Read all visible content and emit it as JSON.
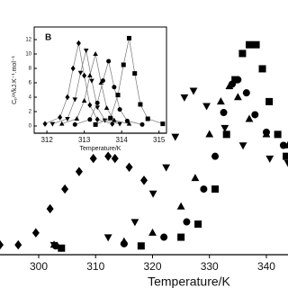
{
  "chart_data": [
    {
      "type": "scatter",
      "x_label": "Temperature/K",
      "xlim": [
        293.2,
        343.8
      ],
      "xticks": [
        300,
        310,
        320,
        330,
        340
      ],
      "ylim": [
        0,
        100
      ],
      "marker_size": 4,
      "series": [
        {
          "color": "#000000",
          "marker": "diamond",
          "x": [
            293.2,
            296.4,
            299.5,
            302.0,
            304.6,
            307.1,
            309.6,
            312.2,
            313.4,
            315.9,
            318.5
          ],
          "values": [
            4.5,
            4.5,
            10,
            21,
            30,
            38,
            44,
            45,
            44,
            40,
            34
          ]
        },
        {
          "color": "#000000",
          "marker": "triangle-down",
          "x": [
            302.7,
            312.2,
            316.9,
            320.1,
            322.4,
            324.0,
            325.6,
            327.2,
            329.5,
            332.7,
            335.9,
            340.6,
            343.8
          ],
          "values": [
            4.5,
            8,
            15,
            28,
            40,
            54,
            72,
            75,
            68,
            58,
            50,
            44,
            42
          ]
        },
        {
          "color": "#000000",
          "marker": "triangle-up",
          "x": [
            302.7,
            315,
            320,
            325,
            327.5,
            330,
            332,
            333.5,
            335,
            337,
            340,
            343.8
          ],
          "values": [
            4.5,
            6,
            10,
            22,
            35,
            55,
            70,
            77,
            72,
            62,
            55,
            50
          ]
        },
        {
          "color": "#000000",
          "marker": "circle",
          "x": [
            303,
            315,
            322,
            326,
            329,
            331,
            332.5,
            334,
            335,
            336.5,
            338,
            340,
            343
          ],
          "values": [
            4,
            5,
            8,
            15,
            30,
            45,
            65,
            78,
            80,
            74,
            64,
            56,
            50
          ]
        },
        {
          "color": "#000000",
          "marker": "square",
          "x": [
            304,
            318,
            325,
            328,
            331,
            333,
            334.5,
            335.8,
            337,
            338.2,
            339.3,
            340.5,
            342,
            343.5
          ],
          "values": [
            3,
            4,
            8,
            14,
            30,
            55,
            80,
            92,
            96,
            96,
            85,
            70,
            55,
            45
          ]
        }
      ]
    },
    {
      "type": "scatter",
      "panel_label": "B",
      "x_label": "Temperature/K",
      "y_label": "Cₚᵉˣ/kJ.K⁻¹.mol⁻¹",
      "xlim": [
        311.66,
        315.2
      ],
      "xticks": [
        312,
        313,
        314,
        315
      ],
      "ylim": [
        -1,
        13.75
      ],
      "yticks": [
        0,
        2,
        4,
        6,
        8,
        10,
        12
      ],
      "marker_size": 2.5,
      "line_color": "#777777",
      "series": [
        {
          "color": "#000000",
          "marker": "diamond",
          "x": [
            311.95,
            312.35,
            312.55,
            312.7,
            312.85,
            313.0,
            313.15,
            313.35,
            313.75
          ],
          "values": [
            0.3,
            1.2,
            4,
            8,
            11.5,
            7,
            2.9,
            0.9,
            0.3
          ]
        },
        {
          "color": "#000000",
          "marker": "triangle-down",
          "x": [
            312.15,
            312.55,
            312.75,
            312.9,
            313.05,
            313.2,
            313.35,
            313.55,
            313.95
          ],
          "values": [
            0.3,
            1.0,
            3.7,
            7.4,
            10.5,
            6.3,
            2.6,
            0.8,
            0.3
          ]
        },
        {
          "color": "#000000",
          "marker": "triangle-up",
          "x": [
            312.4,
            312.8,
            313.0,
            313.15,
            313.3,
            313.45,
            313.6,
            313.8,
            314.2
          ],
          "values": [
            0.3,
            1,
            3.5,
            7,
            10,
            6,
            2.5,
            0.8,
            0.3
          ]
        },
        {
          "color": "#000000",
          "marker": "circle",
          "x": [
            312.75,
            313.15,
            313.35,
            313.5,
            313.65,
            313.8,
            313.95,
            314.15,
            314.55
          ],
          "values": [
            0.2,
            0.9,
            3.2,
            6.3,
            9,
            5.4,
            2.3,
            0.7,
            0.2
          ]
        },
        {
          "color": "#000000",
          "marker": "square",
          "x": [
            313.3,
            313.7,
            313.9,
            314.05,
            314.2,
            314.35,
            314.5,
            314.7,
            315.1
          ],
          "values": [
            0.2,
            1.1,
            4.3,
            8.5,
            12.2,
            7.3,
            3,
            1,
            0.3
          ]
        }
      ]
    }
  ]
}
